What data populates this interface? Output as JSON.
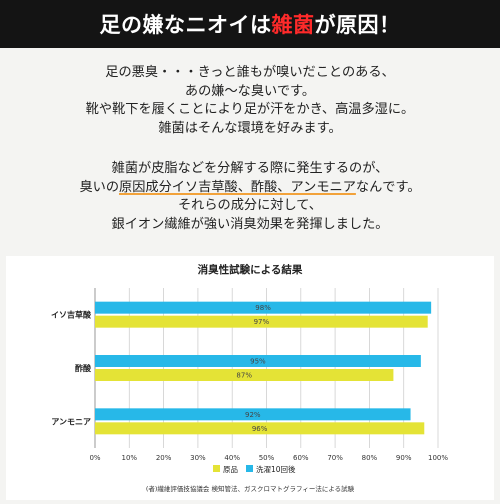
{
  "heading": {
    "part1": "足の嫌なニオイは",
    "part2": "雑菌",
    "part3": "が原因！"
  },
  "paragraph1": [
    "足の悪臭・・・きっと誰もが嗅いだことのある、",
    "あの嫌〜な臭いです。",
    "靴や靴下を履くことにより足が汗をかき、高温多湿に。",
    "雑菌はそんな環境を好みます。"
  ],
  "paragraph2": {
    "line1": "雑菌が皮脂などを分解する際に発生するのが、",
    "line2_pre": "臭いの",
    "line2_hl": "原因成分イソ吉草酸、酢酸、アンモニア",
    "line2_post": "なんです。",
    "line3": "それらの成分に対して、",
    "line4": "銀イオン繊維が強い消臭効果を発揮しました。"
  },
  "chart_data": {
    "type": "bar",
    "orientation": "horizontal",
    "title": "消臭性試験による結果",
    "categories": [
      "イソ吉草酸",
      "酢酸",
      "アンモニア"
    ],
    "series": [
      {
        "name": "洗濯10回後",
        "values": [
          98,
          95,
          92
        ],
        "color": "#27b8e8"
      },
      {
        "name": "原品",
        "values": [
          97,
          87,
          96
        ],
        "color": "#e4e336"
      }
    ],
    "value_labels": [
      [
        "98%",
        "97%"
      ],
      [
        "95%",
        "87%"
      ],
      [
        "92%",
        "96%"
      ]
    ],
    "xticks": [
      "0%",
      "10%",
      "20%",
      "30%",
      "40%",
      "50%",
      "60%",
      "70%",
      "80%",
      "90%",
      "100%"
    ],
    "xlim": [
      0,
      100
    ],
    "legend": [
      "原品",
      "洗濯10回後"
    ],
    "legend_position": "bottom",
    "grid": true,
    "footnote": "(者)繊維評価技協議会 検知管法、ガスクロマトグラフィー法による試験"
  }
}
